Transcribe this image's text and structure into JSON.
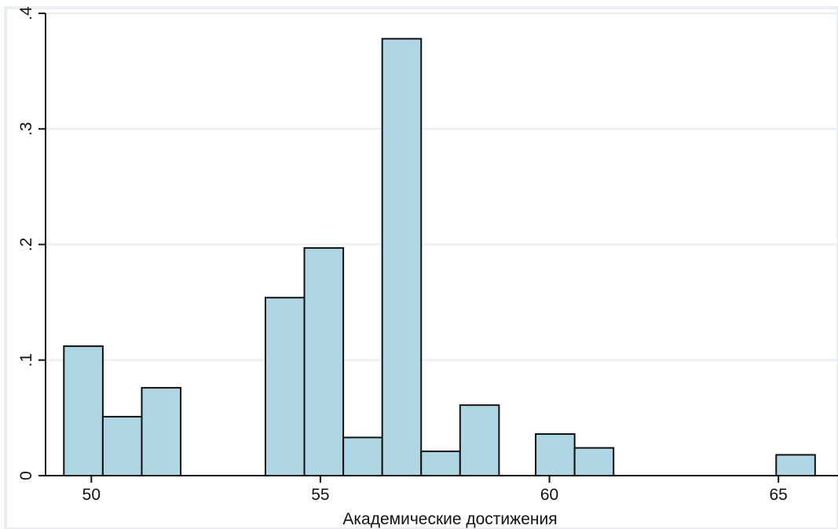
{
  "chart_data": {
    "type": "bar",
    "histogram": true,
    "title": "",
    "xlabel": "Академические достижения",
    "ylabel": "",
    "xlim": [
      49,
      66.3
    ],
    "ylim": [
      0,
      0.4
    ],
    "bin_width": 0.85,
    "x_ticks": [
      50,
      55,
      60,
      65
    ],
    "x_tick_labels": [
      "50",
      "55",
      "60",
      "65"
    ],
    "y_ticks": [
      0,
      0.1,
      0.2,
      0.3,
      0.4
    ],
    "y_tick_labels": [
      "0",
      ".1",
      ".2",
      ".3",
      ".4"
    ],
    "grid": true,
    "bars": [
      {
        "x_start": 49.4,
        "x_end": 50.25,
        "value": 0.112
      },
      {
        "x_start": 50.25,
        "x_end": 51.1,
        "value": 0.051
      },
      {
        "x_start": 51.1,
        "x_end": 51.95,
        "value": 0.076
      },
      {
        "x_start": 53.8,
        "x_end": 54.65,
        "value": 0.154
      },
      {
        "x_start": 54.65,
        "x_end": 55.5,
        "value": 0.197
      },
      {
        "x_start": 55.5,
        "x_end": 56.35,
        "value": 0.033
      },
      {
        "x_start": 56.35,
        "x_end": 57.2,
        "value": 0.378
      },
      {
        "x_start": 57.2,
        "x_end": 58.05,
        "value": 0.021
      },
      {
        "x_start": 58.05,
        "x_end": 58.9,
        "value": 0.061
      },
      {
        "x_start": 59.7,
        "x_end": 60.55,
        "value": 0.036
      },
      {
        "x_start": 60.55,
        "x_end": 61.4,
        "value": 0.024
      },
      {
        "x_start": 64.95,
        "x_end": 65.8,
        "value": 0.018
      }
    ],
    "colors": {
      "bar_fill": "#aed6e3",
      "bar_stroke": "#111111",
      "grid": "#e8eef1",
      "axis": "#111111",
      "background": "#ffffff",
      "outer_frame": "#e8eef1"
    }
  }
}
